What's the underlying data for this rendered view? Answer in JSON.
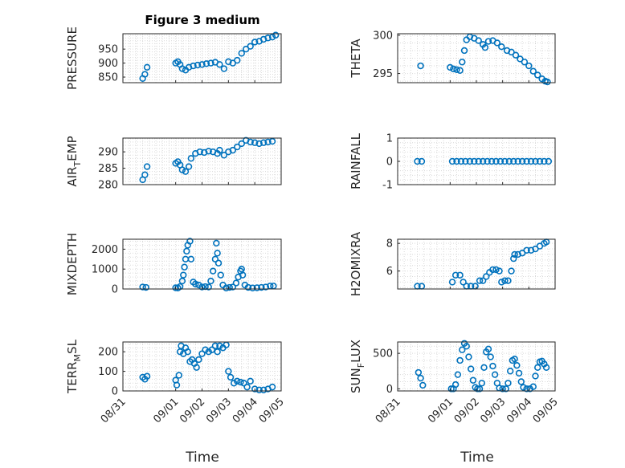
{
  "figure": {
    "title": "Figure 3 medium",
    "xlabel": "Time"
  },
  "colors": {
    "marker": "#0072BD",
    "axis": "#262626",
    "grid": "#d9d9d9"
  },
  "chart_data": [
    {
      "type": "scatter",
      "ylabel": "PRESSURE",
      "title": "Figure 3 medium",
      "ylim": [
        830,
        1005
      ],
      "yticks": [
        850,
        900,
        950
      ],
      "xlim": [
        "08/31",
        "09/05"
      ],
      "xticklabels": [
        "08/31",
        "09/01",
        "09/02",
        "09/03",
        "09/04",
        "09/05"
      ],
      "grid": "on",
      "points": [
        [
          "08/31 18:00",
          845
        ],
        [
          "08/31 20:00",
          860
        ],
        [
          "08/31 22:00",
          885
        ],
        [
          "09/01 00:00",
          900
        ],
        [
          "09/01 02:00",
          905
        ],
        [
          "09/01 04:00",
          895
        ],
        [
          "09/01 06:00",
          880
        ],
        [
          "09/01 09:00",
          875
        ],
        [
          "09/01 12:00",
          885
        ],
        [
          "09/01 16:00",
          890
        ],
        [
          "09/01 20:00",
          893
        ],
        [
          "09/02 00:00",
          895
        ],
        [
          "09/02 04:00",
          898
        ],
        [
          "09/02 08:00",
          900
        ],
        [
          "09/02 12:00",
          903
        ],
        [
          "09/02 16:00",
          895
        ],
        [
          "09/02 20:00",
          880
        ],
        [
          "09/03 00:00",
          905
        ],
        [
          "09/03 04:00",
          900
        ],
        [
          "09/03 08:00",
          910
        ],
        [
          "09/03 12:00",
          935
        ],
        [
          "09/03 16:00",
          950
        ],
        [
          "09/03 20:00",
          960
        ],
        [
          "09/04 00:00",
          975
        ],
        [
          "09/04 04:00",
          978
        ],
        [
          "09/04 08:00",
          985
        ],
        [
          "09/04 12:00",
          990
        ],
        [
          "09/04 16:00",
          993
        ],
        [
          "09/04 19:00",
          1000
        ]
      ]
    },
    {
      "type": "scatter",
      "ylabel": "THETA",
      "ylim": [
        293.8,
        300.2
      ],
      "yticks": [
        295,
        300
      ],
      "xlim": [
        "08/31",
        "09/05"
      ],
      "xticklabels": [
        "08/31",
        "09/01",
        "09/02",
        "09/03",
        "09/04",
        "09/05"
      ],
      "grid": "on",
      "points": [
        [
          "08/31 21:00",
          296.0
        ],
        [
          "09/01 00:00",
          295.8
        ],
        [
          "09/01 03:00",
          295.6
        ],
        [
          "09/01 06:00",
          295.5
        ],
        [
          "09/01 09:00",
          295.4
        ],
        [
          "09/01 11:00",
          296.5
        ],
        [
          "09/01 13:00",
          298.0
        ],
        [
          "09/01 15:00",
          299.4
        ],
        [
          "09/01 18:00",
          299.8
        ],
        [
          "09/01 22:00",
          299.6
        ],
        [
          "09/02 02:00",
          299.3
        ],
        [
          "09/02 06:00",
          298.8
        ],
        [
          "09/02 08:00",
          298.4
        ],
        [
          "09/02 11:00",
          299.2
        ],
        [
          "09/02 15:00",
          299.3
        ],
        [
          "09/02 19:00",
          299.0
        ],
        [
          "09/02 23:00",
          298.5
        ],
        [
          "09/03 04:00",
          298.0
        ],
        [
          "09/03 08:00",
          297.8
        ],
        [
          "09/03 12:00",
          297.4
        ],
        [
          "09/03 16:00",
          296.9
        ],
        [
          "09/03 20:00",
          296.5
        ],
        [
          "09/04 00:00",
          296.0
        ],
        [
          "09/04 04:00",
          295.3
        ],
        [
          "09/04 08:00",
          294.8
        ],
        [
          "09/04 12:00",
          294.3
        ],
        [
          "09/04 15:00",
          294.0
        ],
        [
          "09/04 17:00",
          293.9
        ]
      ]
    },
    {
      "type": "scatter",
      "ylabel": "AIR_TEMP",
      "ylabel_main": "AIR",
      "ylabel_sub": "T",
      "ylabel_rest": "EMP",
      "ylim": [
        280,
        294.2
      ],
      "yticks": [
        280,
        285,
        290
      ],
      "xlim": [
        "08/31",
        "09/05"
      ],
      "xticklabels": [
        "08/31",
        "09/01",
        "09/02",
        "09/03",
        "09/04",
        "09/05"
      ],
      "grid": "on",
      "points": [
        [
          "08/31 18:00",
          281.5
        ],
        [
          "08/31 20:00",
          283.0
        ],
        [
          "08/31 22:00",
          285.5
        ],
        [
          "09/01 00:00",
          286.5
        ],
        [
          "09/01 02:00",
          287.0
        ],
        [
          "09/01 04:00",
          286.0
        ],
        [
          "09/01 06:00",
          284.5
        ],
        [
          "09/01 09:00",
          284.0
        ],
        [
          "09/01 12:00",
          285.5
        ],
        [
          "09/01 14:00",
          288.0
        ],
        [
          "09/01 18:00",
          289.5
        ],
        [
          "09/01 22:00",
          290.0
        ],
        [
          "09/02 02:00",
          289.8
        ],
        [
          "09/02 06:00",
          290.2
        ],
        [
          "09/02 10:00",
          290.0
        ],
        [
          "09/02 14:00",
          289.5
        ],
        [
          "09/02 16:00",
          290.5
        ],
        [
          "09/02 20:00",
          289.0
        ],
        [
          "09/03 00:00",
          290.0
        ],
        [
          "09/03 04:00",
          290.5
        ],
        [
          "09/03 08:00",
          291.5
        ],
        [
          "09/03 12:00",
          292.5
        ],
        [
          "09/03 16:00",
          293.5
        ],
        [
          "09/03 20:00",
          293.0
        ],
        [
          "09/04 00:00",
          292.8
        ],
        [
          "09/04 04:00",
          292.5
        ],
        [
          "09/04 08:00",
          292.8
        ],
        [
          "09/04 12:00",
          293.0
        ],
        [
          "09/04 16:00",
          293.2
        ]
      ]
    },
    {
      "type": "scatter",
      "ylabel": "RAINFALL",
      "ylim": [
        -1,
        1
      ],
      "yticks": [
        -1,
        0,
        1
      ],
      "xlim": [
        "08/31",
        "09/05"
      ],
      "xticklabels": [
        "08/31",
        "09/01",
        "09/02",
        "09/03",
        "09/04",
        "09/05"
      ],
      "grid": "on",
      "points": [
        [
          "08/31 18:00",
          0
        ],
        [
          "08/31 22:00",
          0
        ],
        [
          "09/01 02:00",
          0
        ],
        [
          "09/01 06:00",
          0
        ],
        [
          "09/01 10:00",
          0
        ],
        [
          "09/01 14:00",
          0
        ],
        [
          "09/01 18:00",
          0
        ],
        [
          "09/01 22:00",
          0
        ],
        [
          "09/02 02:00",
          0
        ],
        [
          "09/02 06:00",
          0
        ],
        [
          "09/02 10:00",
          0
        ],
        [
          "09/02 14:00",
          0
        ],
        [
          "09/02 18:00",
          0
        ],
        [
          "09/02 22:00",
          0
        ],
        [
          "09/03 02:00",
          0
        ],
        [
          "09/03 06:00",
          0
        ],
        [
          "09/03 10:00",
          0
        ],
        [
          "09/03 14:00",
          0
        ],
        [
          "09/03 18:00",
          0
        ],
        [
          "09/03 22:00",
          0
        ],
        [
          "09/04 02:00",
          0
        ],
        [
          "09/04 06:00",
          0
        ],
        [
          "09/04 10:00",
          0
        ],
        [
          "09/04 14:00",
          0
        ],
        [
          "09/04 18:00",
          0
        ]
      ]
    },
    {
      "type": "scatter",
      "ylabel": "MIXDEPTH",
      "ylim": [
        0,
        2500
      ],
      "yticks": [
        0,
        1000,
        2000
      ],
      "xlim": [
        "08/31",
        "09/05"
      ],
      "xticklabels": [
        "08/31",
        "09/01",
        "09/02",
        "09/03",
        "09/04",
        "09/05"
      ],
      "grid": "on",
      "points": [
        [
          "08/31 18:00",
          100
        ],
        [
          "08/31 21:00",
          80
        ],
        [
          "09/01 00:00",
          60
        ],
        [
          "09/01 02:00",
          50
        ],
        [
          "09/01 04:00",
          120
        ],
        [
          "09/01 06:00",
          400
        ],
        [
          "09/01 07:00",
          700
        ],
        [
          "09/01 08:00",
          1100
        ],
        [
          "09/01 09:00",
          1500
        ],
        [
          "09/01 10:00",
          1900
        ],
        [
          "09/01 11:00",
          2200
        ],
        [
          "09/01 13:00",
          2400
        ],
        [
          "09/01 14:00",
          1500
        ],
        [
          "09/01 16:00",
          350
        ],
        [
          "09/01 18:00",
          250
        ],
        [
          "09/01 21:00",
          200
        ],
        [
          "09/02 00:00",
          100
        ],
        [
          "09/02 03:00",
          120
        ],
        [
          "09/02 06:00",
          100
        ],
        [
          "09/02 08:00",
          400
        ],
        [
          "09/02 10:00",
          900
        ],
        [
          "09/02 12:00",
          1500
        ],
        [
          "09/02 13:00",
          2300
        ],
        [
          "09/02 14:00",
          1800
        ],
        [
          "09/02 15:00",
          1300
        ],
        [
          "09/02 17:00",
          700
        ],
        [
          "09/02 19:00",
          200
        ],
        [
          "09/02 22:00",
          50
        ],
        [
          "09/03 01:00",
          80
        ],
        [
          "09/03 04:00",
          100
        ],
        [
          "09/03 07:00",
          300
        ],
        [
          "09/03 09:00",
          600
        ],
        [
          "09/03 11:00",
          900
        ],
        [
          "09/03 12:00",
          1000
        ],
        [
          "09/03 13:00",
          700
        ],
        [
          "09/03 15:00",
          200
        ],
        [
          "09/03 18:00",
          80
        ],
        [
          "09/03 22:00",
          50
        ],
        [
          "09/04 02:00",
          60
        ],
        [
          "09/04 06:00",
          80
        ],
        [
          "09/04 10:00",
          100
        ],
        [
          "09/04 14:00",
          150
        ],
        [
          "09/04 17:00",
          150
        ]
      ]
    },
    {
      "type": "scatter",
      "ylabel": "H2OMIXRA",
      "ylim": [
        4.7,
        8.3
      ],
      "yticks": [
        6,
        8
      ],
      "xlim": [
        "08/31",
        "09/05"
      ],
      "xticklabels": [
        "08/31",
        "09/01",
        "09/02",
        "09/03",
        "09/04",
        "09/05"
      ],
      "grid": "on",
      "points": [
        [
          "08/31 18:00",
          4.9
        ],
        [
          "08/31 22:00",
          4.9
        ],
        [
          "09/01 02:00",
          5.2
        ],
        [
          "09/01 05:00",
          5.7
        ],
        [
          "09/01 09:00",
          5.7
        ],
        [
          "09/01 12:00",
          5.2
        ],
        [
          "09/01 15:00",
          4.9
        ],
        [
          "09/01 19:00",
          4.9
        ],
        [
          "09/01 23:00",
          4.9
        ],
        [
          "09/02 03:00",
          5.3
        ],
        [
          "09/02 06:00",
          5.3
        ],
        [
          "09/02 09:00",
          5.6
        ],
        [
          "09/02 12:00",
          5.9
        ],
        [
          "09/02 15:00",
          6.1
        ],
        [
          "09/02 18:00",
          6.1
        ],
        [
          "09/02 21:00",
          6.0
        ],
        [
          "09/02 23:00",
          5.2
        ],
        [
          "09/03 02:00",
          5.3
        ],
        [
          "09/03 05:00",
          5.3
        ],
        [
          "09/03 08:00",
          6.0
        ],
        [
          "09/03 10:00",
          6.9
        ],
        [
          "09/03 11:00",
          7.2
        ],
        [
          "09/03 14:00",
          7.2
        ],
        [
          "09/03 18:00",
          7.3
        ],
        [
          "09/03 22:00",
          7.5
        ],
        [
          "09/04 02:00",
          7.5
        ],
        [
          "09/04 06:00",
          7.6
        ],
        [
          "09/04 10:00",
          7.8
        ],
        [
          "09/04 14:00",
          8.0
        ],
        [
          "09/04 16:00",
          8.1
        ]
      ]
    },
    {
      "type": "scatter",
      "ylabel": "TERR_MSL",
      "ylabel_main": "TERR",
      "ylabel_sub": "M",
      "ylabel_rest": "SL",
      "ylim": [
        0,
        250
      ],
      "yticks": [
        0,
        100,
        200
      ],
      "xlim": [
        "08/31",
        "09/05"
      ],
      "xticklabels": [
        "08/31",
        "09/01",
        "09/02",
        "09/03",
        "09/04",
        "09/05"
      ],
      "grid": "on",
      "points": [
        [
          "08/31 18:00",
          70
        ],
        [
          "08/31 20:00",
          60
        ],
        [
          "08/31 22:00",
          75
        ],
        [
          "09/01 00:00",
          55
        ],
        [
          "09/01 01:00",
          30
        ],
        [
          "09/01 03:00",
          80
        ],
        [
          "09/01 04:00",
          200
        ],
        [
          "09/01 05:00",
          230
        ],
        [
          "09/01 07:00",
          190
        ],
        [
          "09/01 09:00",
          220
        ],
        [
          "09/01 11:00",
          200
        ],
        [
          "09/01 13:00",
          150
        ],
        [
          "09/01 15:00",
          160
        ],
        [
          "09/01 17:00",
          140
        ],
        [
          "09/01 19:00",
          120
        ],
        [
          "09/01 21:00",
          160
        ],
        [
          "09/02 00:00",
          190
        ],
        [
          "09/02 03:00",
          210
        ],
        [
          "09/02 06:00",
          200
        ],
        [
          "09/02 09:00",
          210
        ],
        [
          "09/02 12:00",
          230
        ],
        [
          "09/02 14:00",
          200
        ],
        [
          "09/02 16:00",
          230
        ],
        [
          "09/02 19:00",
          220
        ],
        [
          "09/02 22:00",
          235
        ],
        [
          "09/03 00:00",
          100
        ],
        [
          "09/03 02:00",
          70
        ],
        [
          "09/03 05:00",
          40
        ],
        [
          "09/03 08:00",
          50
        ],
        [
          "09/03 11:00",
          45
        ],
        [
          "09/03 14:00",
          40
        ],
        [
          "09/03 17:00",
          20
        ],
        [
          "09/03 20:00",
          50
        ],
        [
          "09/04 00:00",
          10
        ],
        [
          "09/04 04:00",
          5
        ],
        [
          "09/04 08:00",
          5
        ],
        [
          "09/04 12:00",
          10
        ],
        [
          "09/04 16:00",
          20
        ]
      ]
    },
    {
      "type": "scatter",
      "ylabel": "SUN_FLUX",
      "ylabel_main": "SUN",
      "ylabel_sub": "F",
      "ylabel_rest": "LUX",
      "ylim": [
        -30,
        660
      ],
      "yticks": [
        0,
        500
      ],
      "xlim": [
        "08/31",
        "09/05"
      ],
      "xticklabels": [
        "08/31",
        "09/01",
        "09/02",
        "09/03",
        "09/04",
        "09/05"
      ],
      "grid": "on",
      "points": [
        [
          "08/31 19:00",
          230
        ],
        [
          "08/31 21:00",
          150
        ],
        [
          "08/31 23:00",
          50
        ],
        [
          "09/01 01:00",
          0
        ],
        [
          "09/01 03:00",
          0
        ],
        [
          "09/01 05:00",
          60
        ],
        [
          "09/01 07:00",
          200
        ],
        [
          "09/01 09:00",
          400
        ],
        [
          "09/01 11:00",
          550
        ],
        [
          "09/01 13:00",
          640
        ],
        [
          "09/01 15:00",
          600
        ],
        [
          "09/01 17:00",
          450
        ],
        [
          "09/01 19:00",
          280
        ],
        [
          "09/01 21:00",
          120
        ],
        [
          "09/01 23:00",
          20
        ],
        [
          "09/02 01:00",
          0
        ],
        [
          "09/02 03:00",
          0
        ],
        [
          "09/02 05:00",
          80
        ],
        [
          "09/02 07:00",
          300
        ],
        [
          "09/02 09:00",
          520
        ],
        [
          "09/02 11:00",
          560
        ],
        [
          "09/02 13:00",
          450
        ],
        [
          "09/02 15:00",
          320
        ],
        [
          "09/02 17:00",
          200
        ],
        [
          "09/02 19:00",
          80
        ],
        [
          "09/02 21:00",
          10
        ],
        [
          "09/03 00:00",
          0
        ],
        [
          "09/03 03:00",
          0
        ],
        [
          "09/03 05:00",
          80
        ],
        [
          "09/03 07:00",
          250
        ],
        [
          "09/03 09:00",
          400
        ],
        [
          "09/03 11:00",
          420
        ],
        [
          "09/03 13:00",
          330
        ],
        [
          "09/03 15:00",
          220
        ],
        [
          "09/03 17:00",
          100
        ],
        [
          "09/03 19:00",
          20
        ],
        [
          "09/03 22:00",
          0
        ],
        [
          "09/04 01:00",
          0
        ],
        [
          "09/04 04:00",
          30
        ],
        [
          "09/04 06:00",
          180
        ],
        [
          "09/04 08:00",
          300
        ],
        [
          "09/04 10:00",
          380
        ],
        [
          "09/04 12:00",
          390
        ],
        [
          "09/04 14:00",
          350
        ],
        [
          "09/04 16:00",
          300
        ]
      ]
    }
  ]
}
